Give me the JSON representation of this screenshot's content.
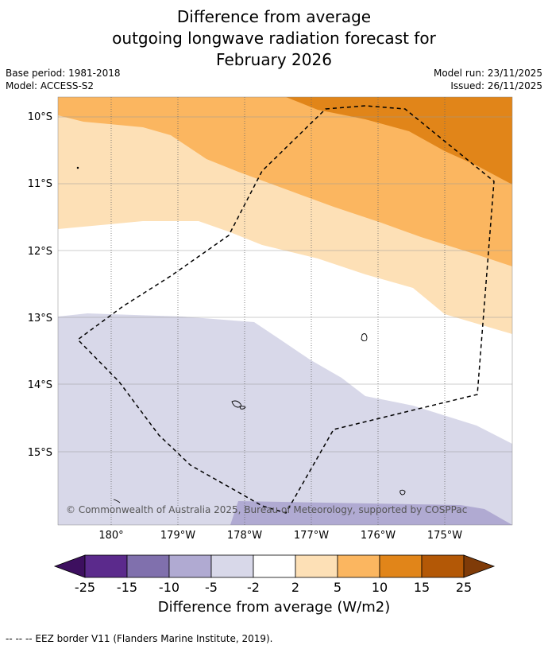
{
  "title": {
    "line1": "Difference from average",
    "line2": "outgoing longwave radiation forecast for",
    "line3": "February 2026"
  },
  "meta": {
    "base_period": "Base period: 1981-2018",
    "model": "Model: ACCESS-S2",
    "model_run": "Model run: 23/11/2025",
    "issued": "Issued: 26/11/2025"
  },
  "map": {
    "lat_labels": [
      "10°S",
      "11°S",
      "12°S",
      "13°S",
      "14°S",
      "15°S"
    ],
    "lon_labels": [
      "180°",
      "179°W",
      "178°W",
      "177°W",
      "176°W",
      "175°W"
    ],
    "copyright": "© Commonwealth of Australia 2025, Bureau of Meteorology, supported by COSPPac"
  },
  "colorbar": {
    "ticks": [
      "-25",
      "-15",
      "-10",
      "-5",
      "-2",
      "2",
      "5",
      "10",
      "15",
      "25"
    ],
    "colors": [
      "#3d0f5f",
      "#5b2a8c",
      "#8070ad",
      "#b0aad2",
      "#d8d8e9",
      "#ffffff",
      "#fde0b6",
      "#fbb660",
      "#e18519",
      "#b35806",
      "#7f3b08"
    ],
    "title": "Difference from average (W/m2)"
  },
  "footer": "--  --  -- EEZ border V11 (Flanders Marine Institute, 2019)."
}
